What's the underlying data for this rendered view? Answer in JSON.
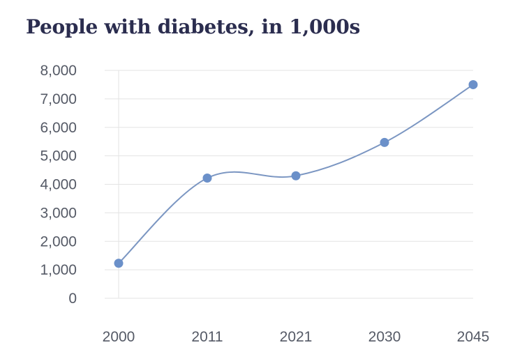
{
  "chart_data": {
    "type": "line",
    "title": "People with diabetes, in 1,000s",
    "xlabel": "",
    "ylabel": "",
    "categories": [
      "2000",
      "2011",
      "2021",
      "2030",
      "2045"
    ],
    "series": [
      {
        "values": [
          1230,
          4220,
          4300,
          5470,
          7500
        ]
      }
    ],
    "ylim": [
      0,
      8000
    ],
    "yticks": [
      0,
      1000,
      2000,
      3000,
      4000,
      5000,
      6000,
      7000,
      8000
    ],
    "ytick_labels": [
      "0",
      "1,000",
      "2,000",
      "3,000",
      "4,000",
      "5,000",
      "6,000",
      "7,000",
      "8,000"
    ],
    "grid": true,
    "line_style": "smooth",
    "colors": {
      "line": "#7b96c2",
      "marker": "#6b90c9",
      "grid": "#e3e3e3",
      "title": "#2b2d4f",
      "ticks": "#555a66"
    }
  }
}
